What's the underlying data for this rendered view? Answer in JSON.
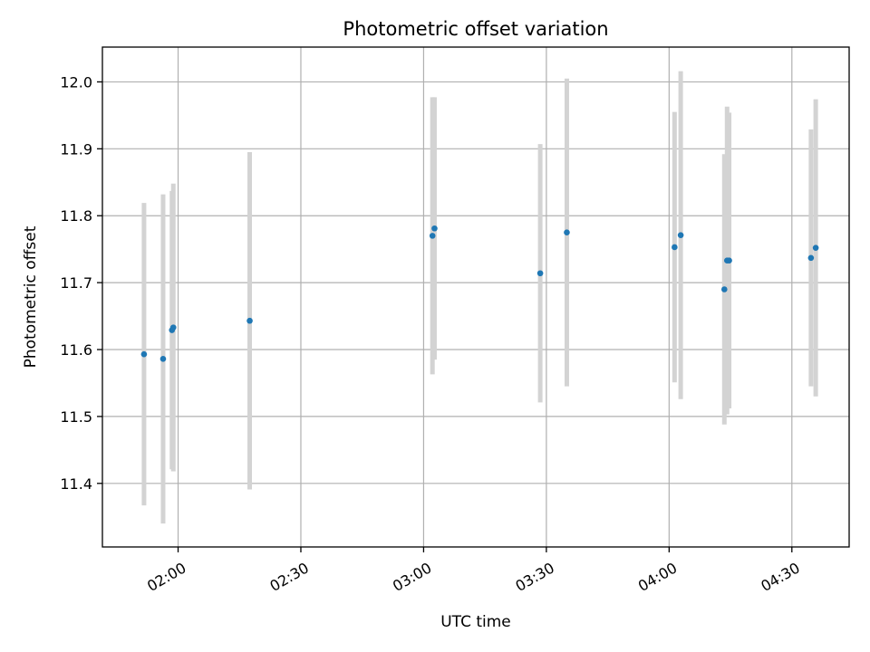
{
  "chart_data": {
    "type": "scatter",
    "title": "Photometric offset variation",
    "xlabel": "UTC time",
    "ylabel": "Photometric offset",
    "xlim": [
      "01:41:30",
      "04:44:00"
    ],
    "ylim": [
      11.305,
      12.052
    ],
    "x_ticks": [
      "02:00",
      "02:30",
      "03:00",
      "03:30",
      "04:00",
      "04:30"
    ],
    "y_ticks": [
      11.4,
      11.5,
      11.6,
      11.7,
      11.8,
      11.9,
      12.0
    ],
    "grid": true,
    "colors": {
      "point": "#1f77b4",
      "errorbar": "#d3d3d3"
    },
    "series": [
      {
        "points": [
          {
            "x": "01:51:40",
            "y": 11.593,
            "yerr": 0.226
          },
          {
            "x": "01:56:20",
            "y": 11.586,
            "yerr": 0.246
          },
          {
            "x": "01:58:30",
            "y": 11.629,
            "yerr": 0.208
          },
          {
            "x": "01:58:50",
            "y": 11.633,
            "yerr": 0.215
          },
          {
            "x": "02:17:30",
            "y": 11.643,
            "yerr": 0.252
          },
          {
            "x": "03:02:10",
            "y": 11.77,
            "yerr": 0.207
          },
          {
            "x": "03:02:40",
            "y": 11.781,
            "yerr": 0.196
          },
          {
            "x": "03:28:30",
            "y": 11.714,
            "yerr": 0.193
          },
          {
            "x": "03:35:00",
            "y": 11.775,
            "yerr": 0.23
          },
          {
            "x": "04:01:20",
            "y": 11.753,
            "yerr": 0.202
          },
          {
            "x": "04:02:50",
            "y": 11.771,
            "yerr": 0.245
          },
          {
            "x": "04:13:30",
            "y": 11.69,
            "yerr": 0.202
          },
          {
            "x": "04:14:10",
            "y": 11.733,
            "yerr": 0.23
          },
          {
            "x": "04:14:40",
            "y": 11.733,
            "yerr": 0.221
          },
          {
            "x": "04:34:40",
            "y": 11.737,
            "yerr": 0.192
          },
          {
            "x": "04:35:50",
            "y": 11.752,
            "yerr": 0.222
          }
        ]
      }
    ]
  }
}
